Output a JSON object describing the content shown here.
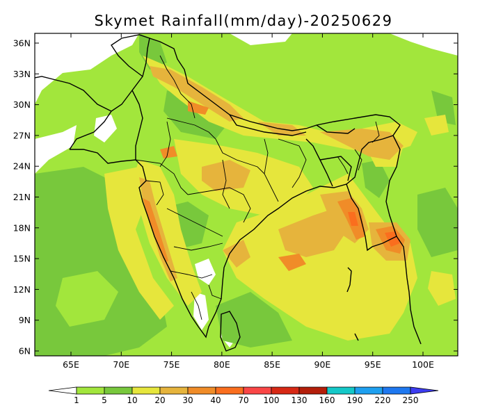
{
  "title": "Skymet Rainfall(mm/day)-20250629",
  "lat_labels": [
    "36N",
    "33N",
    "30N",
    "27N",
    "24N",
    "21N",
    "18N",
    "15N",
    "12N",
    "9N",
    "6N"
  ],
  "lon_labels": [
    "65E",
    "70E",
    "75E",
    "80E",
    "85E",
    "90E",
    "95E",
    "100E"
  ],
  "colorbar": {
    "labels": [
      "1",
      "5",
      "10",
      "20",
      "30",
      "40",
      "70",
      "100",
      "130",
      "160",
      "190",
      "220",
      "250"
    ],
    "colors": [
      "#ffffff",
      "#a2e63c",
      "#78c83c",
      "#e6e63c",
      "#e6b43c",
      "#f08c28",
      "#fa6e1e",
      "#fa4646",
      "#d72814",
      "#b41e0a",
      "#14c8c8",
      "#1ea0f0",
      "#1e78f0",
      "#3c3cf0"
    ]
  },
  "shading_colors": {
    "none": "#ffffff",
    "1-5": "#a2e63c",
    "5-10": "#78c83c",
    "10-20": "#e6e63c",
    "20-30": "#e6b43c",
    "30-40": "#f08c28",
    "40-70": "#fa6e1e"
  }
}
